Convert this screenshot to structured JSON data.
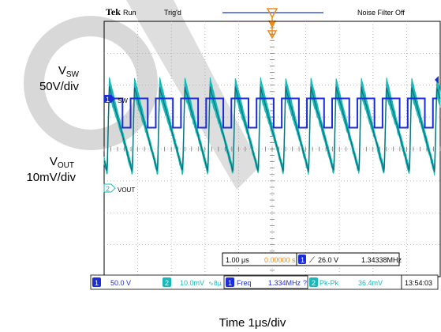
{
  "scope": {
    "brand": "Tek",
    "run_state": "Run",
    "trigger_status": "Trig'd",
    "noise_filter": "Noise Filter Off",
    "timebase": "1.00 μs",
    "trigger_position": "0.00000 s",
    "trigger_channel": "1",
    "trigger_level": "26.0 V",
    "trigger_frequency": "1.34338MHz",
    "clock": "13:54:03"
  },
  "channels": [
    {
      "number": "1",
      "trace_label": "SW",
      "scale": "50.0 V",
      "color": "#1c2cd8"
    },
    {
      "number": "2",
      "trace_label": "VOUT",
      "scale": "10.0mV",
      "bw_note": "∿8μ",
      "color": "#19b9b9"
    }
  ],
  "measurements": [
    {
      "channel": "1",
      "name": "Freq",
      "value": "1.334MHz",
      "flag": "?"
    },
    {
      "channel": "2",
      "name": "Pk-Pk",
      "value": "36.4mV"
    }
  ],
  "annotations": {
    "vsw_label_main": "V",
    "vsw_label_sub": "SW",
    "vsw_scale": "50V/div",
    "vout_label_main": "V",
    "vout_label_sub": "OUT",
    "vout_scale": "10mV/div",
    "time_label": "Time  1μs/div"
  },
  "chart_data": {
    "type": "line",
    "title": "",
    "xlabel": "Time  1μs/div",
    "grid": true,
    "x_divisions": 10,
    "y_divisions": 8,
    "series": [
      {
        "name": "SW",
        "kind": "square_wave",
        "frequency_mhz": 1.334,
        "duty_fraction": 0.68,
        "high_div": 3.1,
        "low_div": 2.35
      },
      {
        "name": "VOUT",
        "kind": "sawtooth_ripple",
        "frequency_mhz": 1.334,
        "pk_pk_mv": 36.4,
        "center_div": 5.0
      }
    ]
  },
  "colors": {
    "grid": "#a6a6a6",
    "frame": "#000000",
    "trigger_marker": "#ee8b18",
    "top_line": "#3a5dd0",
    "ch1": "#1c2cd8",
    "ch2": "#19b9b9",
    "ch2_dark": "#0d6e7a",
    "watermark": "#d8d8d8"
  }
}
